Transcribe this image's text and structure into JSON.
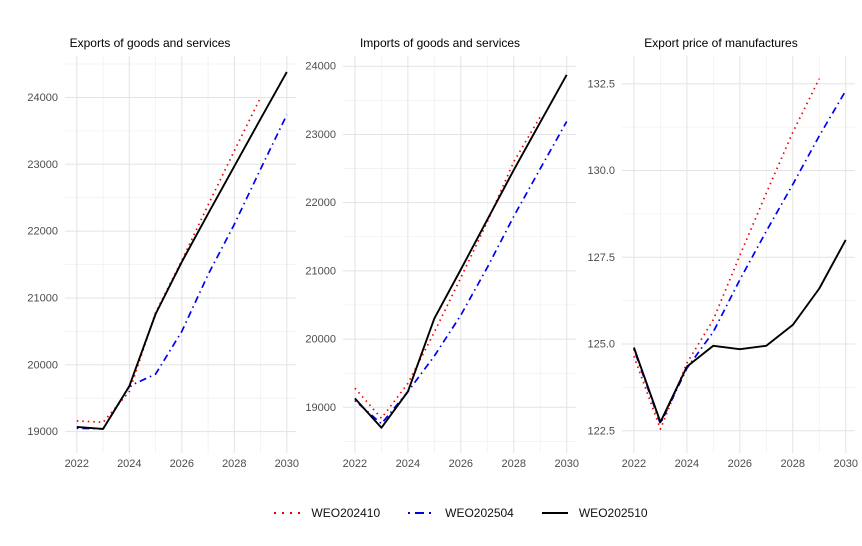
{
  "figure_title": "",
  "legend": {
    "items": [
      {
        "label": "WEO202410",
        "color": "#ee0000",
        "linetype": "dotted"
      },
      {
        "label": "WEO202504",
        "color": "#0000ee",
        "linetype": "dotdash"
      },
      {
        "label": "WEO202510",
        "color": "#000000",
        "linetype": "solid"
      }
    ]
  },
  "chart_data": [
    {
      "type": "line",
      "title": "Exports of goods and services",
      "x": [
        2022,
        2023,
        2024,
        2025,
        2026,
        2027,
        2028,
        2029,
        2030
      ],
      "xlim": [
        2021.55,
        2030.35
      ],
      "ylim": [
        18680,
        24620
      ],
      "xtick_values": [
        2022,
        2024,
        2026,
        2028,
        2030
      ],
      "xtick_labels": [
        "2022",
        "2024",
        "2026",
        "2028",
        "2030"
      ],
      "ytick_values": [
        19000,
        20000,
        21000,
        22000,
        23000,
        24000
      ],
      "ytick_labels": [
        "19000",
        "20000",
        "21000",
        "22000",
        "23000",
        "24000"
      ],
      "grid": "major+minor",
      "legend_position": "bottom",
      "series": [
        {
          "name": "WEO202410",
          "color": "#ee0000",
          "linetype": "dotted",
          "values": [
            19160,
            19140,
            19600,
            20780,
            21560,
            22390,
            23200,
            24000,
            null
          ]
        },
        {
          "name": "WEO202504",
          "color": "#0000ee",
          "linetype": "dotdash",
          "values": [
            19050,
            19040,
            19680,
            19860,
            20500,
            21350,
            22100,
            22930,
            23740
          ]
        },
        {
          "name": "WEO202510",
          "color": "#000000",
          "linetype": "solid",
          "values": [
            19070,
            19040,
            19680,
            20760,
            21540,
            22260,
            22970,
            23680,
            24380
          ]
        }
      ]
    },
    {
      "type": "line",
      "title": "Imports of goods and services",
      "x": [
        2022,
        2023,
        2024,
        2025,
        2026,
        2027,
        2028,
        2029,
        2030
      ],
      "xlim": [
        2021.55,
        2030.35
      ],
      "ylim": [
        18330,
        24150
      ],
      "xtick_values": [
        2022,
        2024,
        2026,
        2028,
        2030
      ],
      "xtick_labels": [
        "2022",
        "2024",
        "2026",
        "2028",
        "2030"
      ],
      "ytick_values": [
        19000,
        20000,
        21000,
        22000,
        23000,
        24000
      ],
      "ytick_labels": [
        "19000",
        "20000",
        "21000",
        "22000",
        "23000",
        "24000"
      ],
      "grid": "major+minor",
      "legend_position": "bottom",
      "series": [
        {
          "name": "WEO202410",
          "color": "#ee0000",
          "linetype": "dotted",
          "values": [
            19280,
            18840,
            19350,
            20100,
            20900,
            21720,
            22600,
            23260,
            null
          ]
        },
        {
          "name": "WEO202504",
          "color": "#0000ee",
          "linetype": "dotdash",
          "values": [
            19100,
            18760,
            19230,
            19750,
            20350,
            21050,
            21800,
            22500,
            23190
          ]
        },
        {
          "name": "WEO202510",
          "color": "#000000",
          "linetype": "solid",
          "values": [
            19130,
            18700,
            19230,
            20300,
            21020,
            21750,
            22480,
            23180,
            23875
          ]
        }
      ]
    },
    {
      "type": "line",
      "title": "Export price of manufactures",
      "x": [
        2022,
        2023,
        2024,
        2025,
        2026,
        2027,
        2028,
        2029,
        2030
      ],
      "xlim": [
        2021.55,
        2030.35
      ],
      "ylim": [
        121.86,
        133.3
      ],
      "xtick_values": [
        2022,
        2024,
        2026,
        2028,
        2030
      ],
      "xtick_labels": [
        "2022",
        "2024",
        "2026",
        "2028",
        "2030"
      ],
      "ytick_values": [
        122.5,
        125.0,
        127.5,
        130.0,
        132.5
      ],
      "ytick_labels": [
        "122.5",
        "125.0",
        "127.5",
        "130.0",
        "132.5"
      ],
      "grid": "major+minor",
      "legend_position": "bottom",
      "series": [
        {
          "name": "WEO202410",
          "color": "#ee0000",
          "linetype": "dotted",
          "values": [
            124.65,
            122.55,
            124.45,
            125.7,
            127.55,
            129.35,
            131.1,
            132.65,
            null
          ]
        },
        {
          "name": "WEO202504",
          "color": "#0000ee",
          "linetype": "dotdash",
          "values": [
            124.85,
            122.7,
            124.3,
            125.35,
            126.85,
            128.25,
            129.6,
            131.0,
            132.3
          ]
        },
        {
          "name": "WEO202510",
          "color": "#000000",
          "linetype": "solid",
          "values": [
            124.9,
            122.75,
            124.35,
            124.95,
            124.85,
            124.95,
            125.55,
            126.6,
            128.0
          ]
        }
      ]
    }
  ]
}
